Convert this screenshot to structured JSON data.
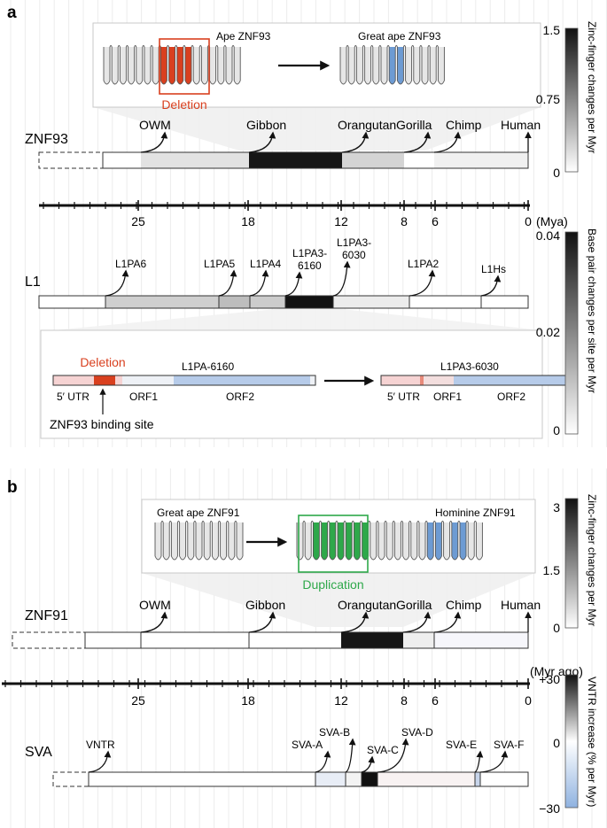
{
  "panel_a": {
    "label": "a",
    "inset_top": {
      "left_title": "Ape ZNF93",
      "right_title": "Great ape ZNF93",
      "annotation": "Deletion"
    },
    "znf_row": {
      "label": "ZNF93",
      "species": [
        "OWM",
        "Gibbon",
        "Orangutan",
        "Gorilla",
        "Chimp",
        "Human"
      ]
    },
    "timeline": {
      "ticks": [
        "25",
        "18",
        "12",
        "8",
        "6",
        "0"
      ],
      "unit": "(Mya)"
    },
    "l1_row": {
      "label": "L1",
      "subfamilies": [
        "L1PA6",
        "L1PA5",
        "L1PA4",
        "L1PA3-",
        "6160",
        "L1PA3-",
        "6030",
        "L1PA2",
        "L1Hs"
      ]
    },
    "inset_bottom": {
      "annotation": "Deletion",
      "left_title": "L1PA-6160",
      "right_title": "L1PA3-6030",
      "segments": [
        "5′ UTR",
        "ORF1",
        "ORF2"
      ],
      "binding_site": "ZNF93 binding site"
    },
    "scale_top": {
      "title": "Zinc-finger changes per Myr",
      "ticks": [
        "1.5",
        "0.75",
        "0"
      ]
    },
    "scale_bottom": {
      "title": "Base pair changes per site per Myr",
      "ticks": [
        "0.04",
        "0.02",
        "0"
      ]
    }
  },
  "panel_b": {
    "label": "b",
    "inset": {
      "left_title": "Great ape ZNF91",
      "right_title": "Hominine ZNF91",
      "annotation": "Duplication"
    },
    "znf_row": {
      "label": "ZNF91",
      "species": [
        "OWM",
        "Gibbon",
        "Orangutan",
        "Gorilla",
        "Chimp",
        "Human"
      ]
    },
    "timeline": {
      "unit": "(Myr ago)",
      "ticks": [
        "25",
        "18",
        "12",
        "8",
        "6",
        "0"
      ]
    },
    "sva_row": {
      "label": "SVA",
      "subfamilies": [
        "VNTR",
        "SVA-A",
        "SVA-B",
        "SVA-C",
        "SVA-D",
        "SVA-E",
        "SVA-F"
      ]
    },
    "scale_top": {
      "title": "Zinc-finger changes per Myr",
      "ticks": [
        "3",
        "1.5",
        "0"
      ]
    },
    "scale_bottom": {
      "title": "VNTR increase (% per Myr)",
      "ticks": [
        "+30",
        "0",
        "−30"
      ]
    }
  },
  "colors": {
    "deletion": "#d9401f",
    "duplication": "#2ea84a",
    "blue": "#6d9bd3",
    "dark": "#1a1a1a"
  }
}
